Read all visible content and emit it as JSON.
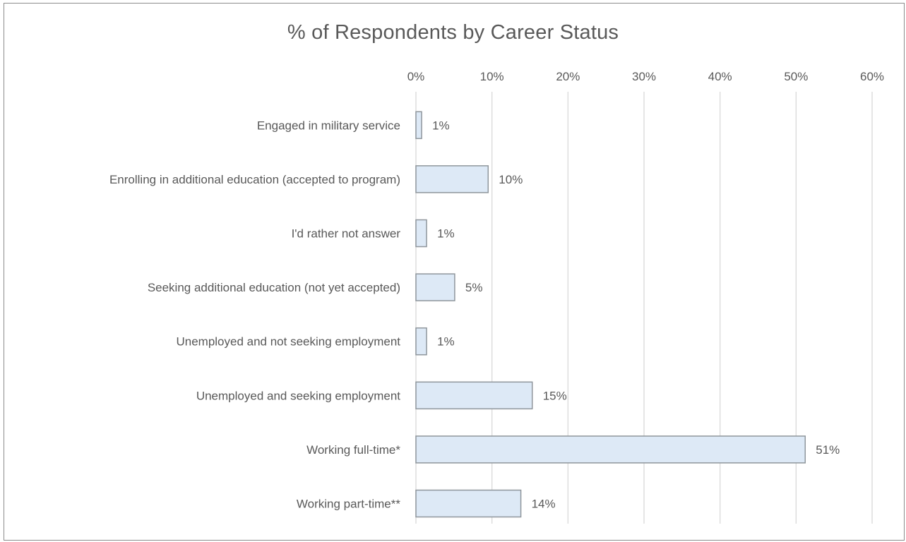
{
  "chart_data": {
    "type": "bar",
    "orientation": "horizontal",
    "title": "% of Respondents by Career Status",
    "categories": [
      "Engaged in military service",
      "Enrolling in additional education (accepted to program)",
      "I'd rather not answer",
      "Seeking additional education (not yet accepted)",
      "Unemployed and not seeking employment",
      "Unemployed and seeking employment",
      "Working full-time*",
      "Working part-time**"
    ],
    "values": [
      0.75,
      9.5,
      1.4,
      5.1,
      1.4,
      15.3,
      51.2,
      13.8
    ],
    "data_labels": [
      "1%",
      "10%",
      "1%",
      "5%",
      "1%",
      "15%",
      "51%",
      "14%"
    ],
    "x_ticks": [
      0,
      10,
      20,
      30,
      40,
      50,
      60
    ],
    "x_tick_labels": [
      "0%",
      "10%",
      "20%",
      "30%",
      "40%",
      "50%",
      "60%"
    ],
    "xlim": [
      0,
      60
    ],
    "x_axis_position": "top",
    "grid": true,
    "legend": "none",
    "colors": {
      "bar_fill": "#dde9f6",
      "bar_stroke": "#8f969c",
      "text": "#595959",
      "grid": "#d9d9d9"
    }
  }
}
